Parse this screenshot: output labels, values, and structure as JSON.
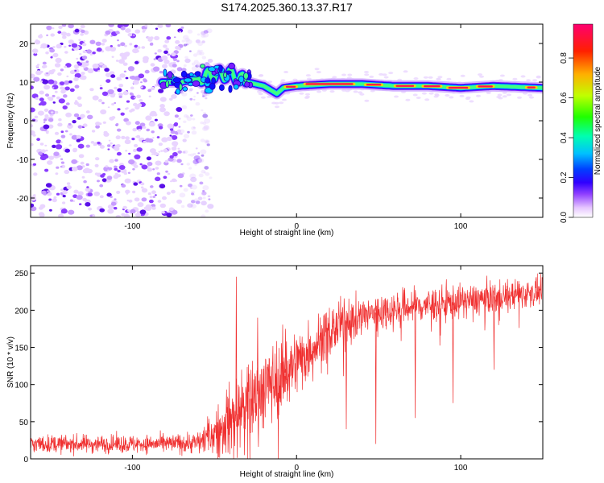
{
  "title": "S174.2025.360.13.37.R17",
  "chart_data": [
    {
      "type": "heatmap",
      "xlabel": "Height of straight line (km)",
      "ylabel": "Frequency (Hz)",
      "xlim": [
        -162,
        150
      ],
      "ylim": [
        -25,
        25
      ],
      "x_ticks": [
        -100,
        0,
        100
      ],
      "y_ticks": [
        20,
        10,
        0,
        -10,
        -20
      ],
      "x_tick_labels": [
        "-100",
        "0",
        "100"
      ],
      "y_tick_labels": [
        "20",
        "10",
        "0",
        "-10",
        "-20"
      ],
      "colorbar": {
        "label": "Normalized spectral amplitude",
        "range": [
          0,
          0.97
        ],
        "ticks": [
          0,
          0.2,
          0.4,
          0.6,
          0.8
        ],
        "tick_labels": [
          "0.0",
          "0.2",
          "0.4",
          "0.6",
          "0.8"
        ],
        "colors": [
          "#ffffff",
          "#e8c8ff",
          "#c080ff",
          "#7a00ff",
          "#0000ff",
          "#00c8ff",
          "#00ff60",
          "#c8ff00",
          "#ff8000",
          "#ff0000",
          "#ff0060"
        ]
      },
      "ridge": {
        "description": "dominant frequency trace",
        "x": [
          -80,
          -70,
          -60,
          -50,
          -40,
          -30,
          -20,
          -12,
          -8,
          0,
          20,
          40,
          60,
          80,
          100,
          120,
          150
        ],
        "y": [
          10,
          10,
          11,
          12,
          12,
          10,
          9,
          7,
          8.5,
          9,
          9.5,
          9.5,
          9,
          9,
          8.5,
          9,
          8.5
        ]
      },
      "noise_region": {
        "x_range": [
          -162,
          -60
        ],
        "y_range": [
          -25,
          25
        ]
      }
    },
    {
      "type": "line",
      "xlabel": "Height of straight line (km)",
      "ylabel": "SNR (10 * v/v)",
      "xlim": [
        -162,
        150
      ],
      "ylim": [
        0,
        260
      ],
      "x_ticks": [
        -100,
        0,
        100
      ],
      "y_ticks": [
        0,
        50,
        100,
        150,
        200,
        250
      ],
      "x_tick_labels": [
        "-100",
        "0",
        "100"
      ],
      "y_tick_labels": [
        "0",
        "50",
        "100",
        "150",
        "200",
        "250"
      ],
      "series": [
        {
          "name": "SNR",
          "color": "#f03030",
          "trend_x": [
            -162,
            -120,
            -80,
            -60,
            -50,
            -40,
            -30,
            -20,
            -10,
            0,
            10,
            20,
            30,
            50,
            70,
            100,
            130,
            150
          ],
          "trend_y": [
            20,
            20,
            20,
            22,
            35,
            55,
            75,
            95,
            110,
            130,
            150,
            170,
            185,
            198,
            205,
            212,
            220,
            225
          ],
          "noise_amplitude": [
            12,
            12,
            12,
            15,
            30,
            45,
            55,
            55,
            50,
            45,
            40,
            35,
            30,
            25,
            25,
            22,
            20,
            18
          ],
          "spikes": [
            {
              "x": -37,
              "y": 245
            },
            {
              "x": -24,
              "y": 190
            },
            {
              "x": -7,
              "y": 175
            },
            {
              "x": 72,
              "y": 55
            },
            {
              "x": 95,
              "y": 75
            },
            {
              "x": 48,
              "y": 20
            },
            {
              "x": -32,
              "y": 5
            },
            {
              "x": 30,
              "y": 40
            },
            {
              "x": 120,
              "y": 120
            }
          ]
        }
      ]
    }
  ]
}
